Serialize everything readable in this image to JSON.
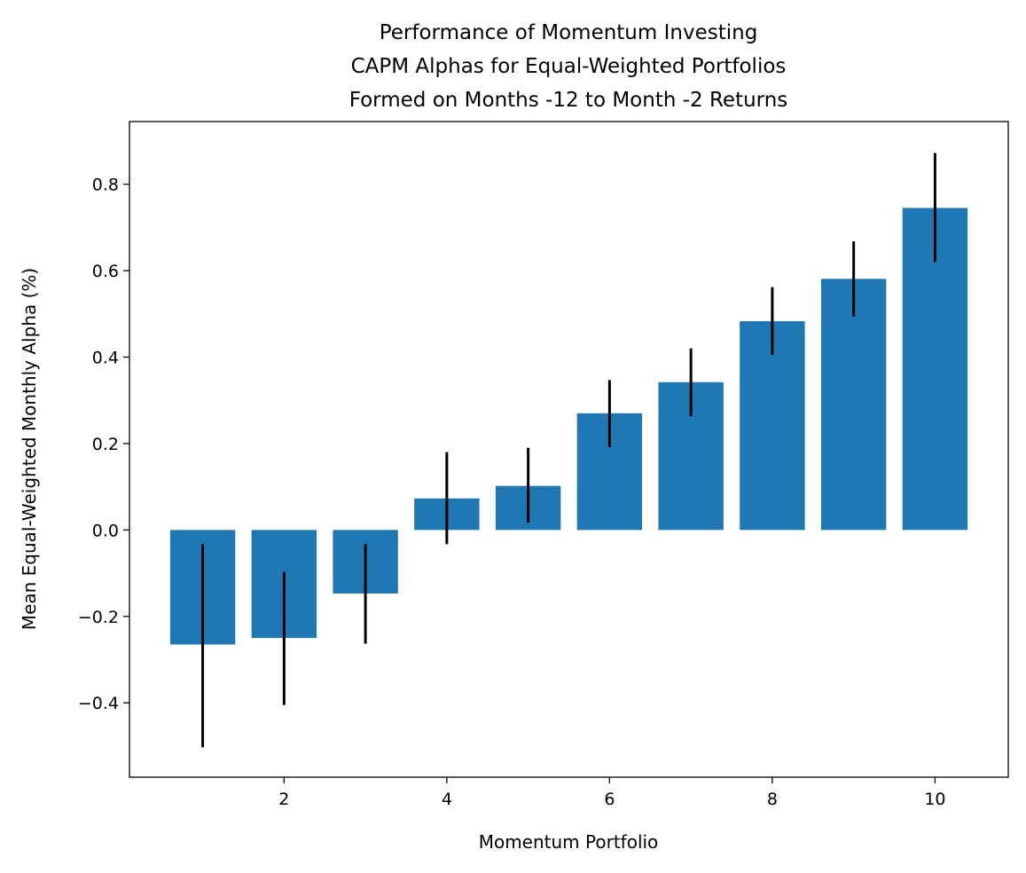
{
  "chart_data": {
    "type": "bar",
    "title": [
      "Performance of Momentum Investing",
      "CAPM Alphas for Equal-Weighted Portfolios",
      "Formed on Months -12 to Month -2 Returns"
    ],
    "xlabel": "Momentum Portfolio",
    "ylabel": "Mean Equal-Weighted Monthly Alpha (%)",
    "x": [
      1,
      2,
      3,
      4,
      5,
      6,
      7,
      8,
      9,
      10
    ],
    "values": [
      -0.265,
      -0.25,
      -0.147,
      0.073,
      0.102,
      0.27,
      0.342,
      0.483,
      0.581,
      0.745
    ],
    "error_low": [
      -0.503,
      -0.405,
      -0.263,
      -0.033,
      0.017,
      0.192,
      0.263,
      0.405,
      0.494,
      0.62
    ],
    "error_high": [
      -0.033,
      -0.097,
      -0.033,
      0.18,
      0.19,
      0.347,
      0.42,
      0.562,
      0.668,
      0.872
    ],
    "xlim": [
      0.1,
      10.9
    ],
    "ylim": [
      -0.572,
      0.945
    ],
    "xticks": [
      2,
      4,
      6,
      8,
      10
    ],
    "yticks": [
      -0.4,
      -0.2,
      0.0,
      0.2,
      0.4,
      0.6,
      0.8
    ],
    "ytick_labels": [
      "−0.4",
      "−0.2",
      "0.0",
      "0.2",
      "0.4",
      "0.6",
      "0.8"
    ],
    "bar_color": "#1f77b4",
    "error_color": "#000000",
    "grid": false
  }
}
